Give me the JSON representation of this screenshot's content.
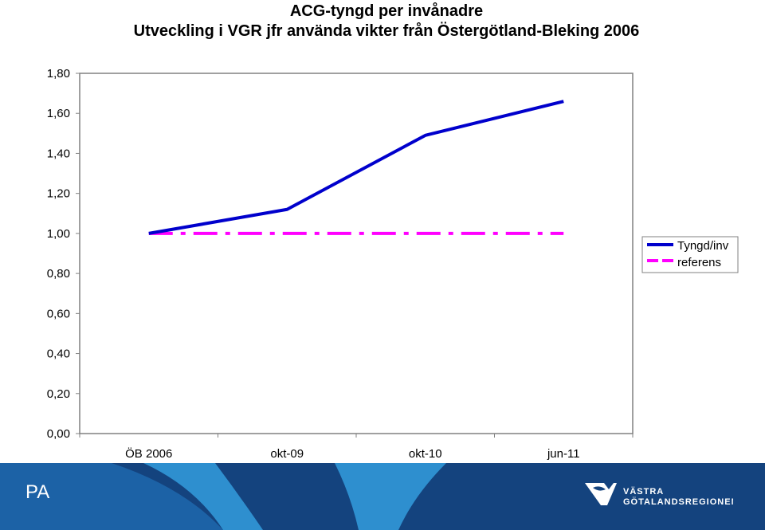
{
  "chart_data": {
    "type": "line",
    "title": "ACG-tyngd per invånadre",
    "subtitle": "Utveckling i VGR jfr använda vikter från Östergötland-Bleking 2006",
    "categories": [
      "ÖB 2006",
      "okt-09",
      "okt-10",
      "jun-11"
    ],
    "series": [
      {
        "name": "Tyngd/inv",
        "color": "#0000CC",
        "style": "solid",
        "values": [
          1.0,
          1.12,
          1.49,
          1.66
        ]
      },
      {
        "name": "referens",
        "color": "#FF00FF",
        "style": "dashdot",
        "values": [
          1.0,
          1.0,
          1.0,
          1.0
        ]
      }
    ],
    "ylim": [
      0,
      1.8
    ],
    "yticks": [
      "0,00",
      "0,20",
      "0,40",
      "0,60",
      "0,80",
      "1,00",
      "1,20",
      "1,40",
      "1,60",
      "1,80"
    ],
    "xlabel": "",
    "ylabel": "",
    "grid": false,
    "legend_position": "right"
  },
  "footer": {
    "label": "PA",
    "org_line1": "VÄSTRA",
    "org_line2": "GÖTALANDSREGIONEN",
    "colors": {
      "dark": "#14437E",
      "mid": "#1C62A6",
      "light": "#2E8FCF"
    }
  }
}
